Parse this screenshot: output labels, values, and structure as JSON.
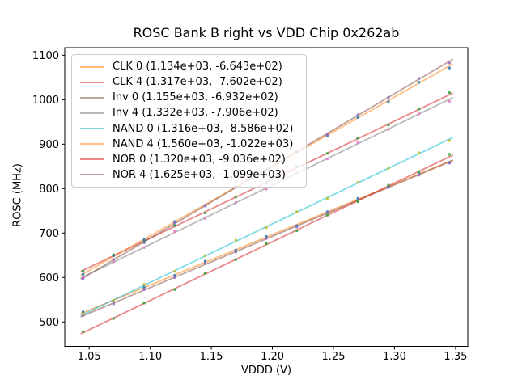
{
  "chart_data": {
    "type": "scatter",
    "title": "ROSC Bank B right vs VDD Chip 0x262ab",
    "xlabel": "VDDD (V)",
    "ylabel": "ROSC (MHz)",
    "xlim": [
      1.03,
      1.36
    ],
    "ylim": [
      445,
      1117
    ],
    "xticks": [
      1.05,
      1.1,
      1.15,
      1.2,
      1.25,
      1.3,
      1.35
    ],
    "yticks": [
      500,
      600,
      700,
      800,
      900,
      1000,
      1100
    ],
    "grid": false,
    "legend_position": "upper left",
    "x": [
      1.045,
      1.07,
      1.095,
      1.12,
      1.145,
      1.17,
      1.195,
      1.22,
      1.245,
      1.27,
      1.295,
      1.32,
      1.345
    ],
    "fit_line_x": [
      1.0435,
      1.3475
    ],
    "series": [
      {
        "name": "CLK 0",
        "legend_label": "CLK 0 (1.134e+03, -6.643e+02)",
        "fit": {
          "slope": 1134,
          "intercept": -664.3
        },
        "line_color": "#ff7f0e",
        "line_alpha": 0.55,
        "marker_color": "#1f77b4",
        "y": [
          522.6,
          546.7,
          578.2,
          604.7,
          636.7,
          661.8,
          692.2,
          716.3,
          748.0,
          778.0,
          802.6,
          835.8,
          858.7
        ]
      },
      {
        "name": "CLK 4",
        "legend_label": "CLK 4 (1.317e+03, -7.602e+02)",
        "fit": {
          "slope": 1317,
          "intercept": -760.2
        },
        "line_color": "#d62728",
        "line_alpha": 0.55,
        "marker_color": "#2ca02c",
        "y": [
          614.7,
          651.2,
          681.0,
          716.5,
          745.2,
          781.3,
          811.8,
          849.4,
          879.1,
          913.6,
          943.2,
          979.1,
          1016.0
        ]
      },
      {
        "name": "Inv 0",
        "legend_label": "Inv 0 (1.155e+03, -6.932e+02)",
        "fit": {
          "slope": 1155,
          "intercept": -693.2
        },
        "line_color": "#8c564b",
        "line_alpha": 0.55,
        "marker_color": "#9467bd",
        "y": [
          514.5,
          540.8,
          572.8,
          599.9,
          631.7,
          657.0,
          687.8,
          713.3,
          746.4,
          772.8,
          804.5,
          830.0,
          857.3
        ]
      },
      {
        "name": "Inv 4",
        "legend_label": "Inv 4 (1.332e+03, -7.906e+02)",
        "fit": {
          "slope": 1332,
          "intercept": -790.6
        },
        "line_color": "#7f7f7f",
        "line_alpha": 0.55,
        "marker_color": "#e377c2",
        "y": [
          599.2,
          635.7,
          667.3,
          703.5,
          732.8,
          768.7,
          798.7,
          835.9,
          866.9,
          903.6,
          933.2,
          968.3,
          996.4
        ]
      },
      {
        "name": "NAND 0",
        "legend_label": "NAND 0 (1.316e+03, -8.586e+02)",
        "fit": {
          "slope": 1316,
          "intercept": -858.6
        },
        "line_color": "#17becf",
        "line_alpha": 0.55,
        "marker_color": "#bcbd22",
        "y": [
          517.8,
          548.7,
          584.5,
          613.8,
          648.8,
          683.9,
          712.1,
          747.8,
          777.5,
          814.1,
          845.1,
          880.7,
          907.9
        ]
      },
      {
        "name": "NAND 4",
        "legend_label": "NAND 4 (1.560e+03, -1.022e+03)",
        "fit": {
          "slope": 1560,
          "intercept": -1022
        },
        "line_color": "#ff7f0e",
        "line_alpha": 0.5,
        "marker_color": "#1f77b4",
        "y": [
          607.3,
          649.0,
          684.9,
          725.9,
          762.0,
          804.3,
          841.6,
          883.6,
          918.6,
          960.0,
          995.5,
          1039.1,
          1071.2
        ]
      },
      {
        "name": "NOR 0",
        "legend_label": "NOR 0 (1.320e+03, -9.036e+02)",
        "fit": {
          "slope": 1320,
          "intercept": -903.6
        },
        "line_color": "#d62728",
        "line_alpha": 0.55,
        "marker_color": "#2ca02c",
        "y": [
          478.1,
          507.7,
          542.7,
          572.8,
          609.4,
          640.0,
          676.3,
          705.4,
          740.4,
          770.6,
          807.6,
          837.9,
          877.0
        ]
      },
      {
        "name": "NOR 4",
        "legend_label": "NOR 4 (1.625e+03, -1.099e+03)",
        "fit": {
          "slope": 1625,
          "intercept": -1099
        },
        "line_color": "#8c564b",
        "line_alpha": 0.55,
        "marker_color": "#9467bd",
        "y": [
          597.5,
          640.7,
          678.1,
          722.2,
          760.9,
          804.4,
          841.0,
          884.3,
          921.6,
          966.1,
          1004.8,
          1048.0,
          1082.6
        ]
      }
    ]
  }
}
